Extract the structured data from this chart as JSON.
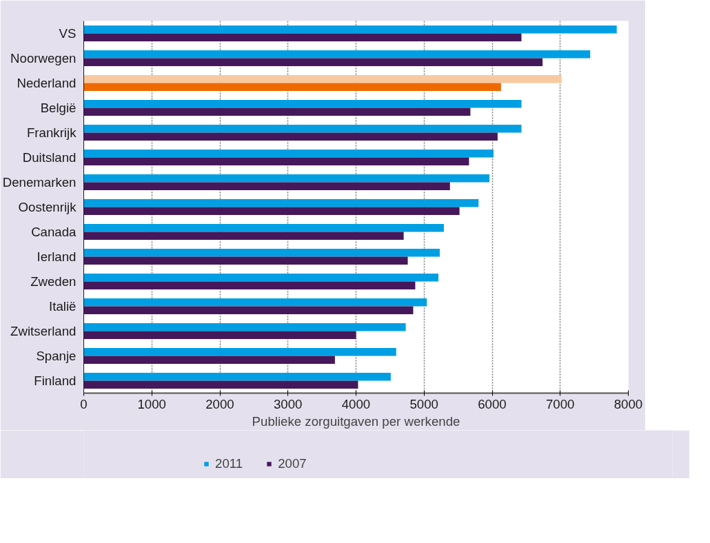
{
  "chart_data": {
    "type": "bar",
    "orientation": "horizontal",
    "xlabel": "Publieke zorguitgaven per werkende",
    "categories": [
      "VS",
      "Noorwegen",
      "Nederland",
      "België",
      "Frankrijk",
      "Duitsland",
      "Denemarken",
      "Oostenrijk",
      "Canada",
      "Ierland",
      "Zweden",
      "Italië",
      "Zwitserland",
      "Spanje",
      "Finland"
    ],
    "series": [
      {
        "name": "2011",
        "color": "#009fe3",
        "colors": [
          "#009fe3",
          "#009fe3",
          "#f8c9a0",
          "#009fe3",
          "#009fe3",
          "#009fe3",
          "#009fe3",
          "#009fe3",
          "#009fe3",
          "#009fe3",
          "#009fe3",
          "#009fe3",
          "#009fe3",
          "#009fe3",
          "#009fe3"
        ],
        "values": [
          7830,
          7440,
          7020,
          6430,
          6430,
          6020,
          5960,
          5800,
          5290,
          5230,
          5210,
          5040,
          4730,
          4590,
          4510
        ]
      },
      {
        "name": "2007",
        "color": "#45185c",
        "colors": [
          "#45185c",
          "#45185c",
          "#ee6a00",
          "#45185c",
          "#45185c",
          "#45185c",
          "#45185c",
          "#45185c",
          "#45185c",
          "#45185c",
          "#45185c",
          "#45185c",
          "#45185c",
          "#45185c",
          "#45185c"
        ],
        "values": [
          6430,
          6740,
          6130,
          5680,
          6080,
          5660,
          5380,
          5520,
          4700,
          4760,
          4870,
          4840,
          4000,
          3690,
          4030
        ]
      }
    ],
    "xlim": [
      0,
      8000
    ],
    "xticks": [
      0,
      1000,
      2000,
      3000,
      4000,
      5000,
      6000,
      7000,
      8000
    ],
    "grid": "x",
    "legend": "bottom"
  }
}
